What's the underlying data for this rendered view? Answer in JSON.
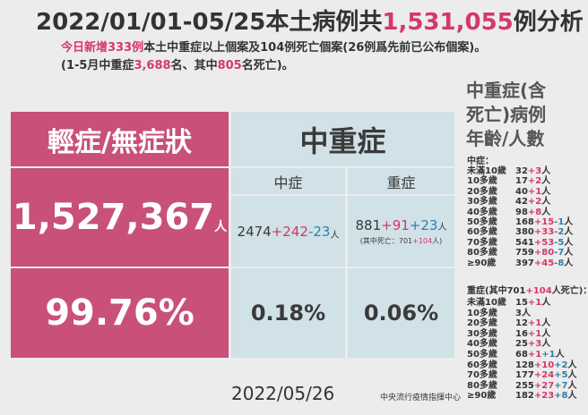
{
  "header": {
    "title": [
      "2022/01/01-05/25本土病例共",
      "1,531,055",
      "例分析"
    ],
    "line1": [
      "今日新增333例",
      "本土中重症以上個案及104例死亡個案(26例爲先前已公布個案)。"
    ],
    "line2": [
      "(1-5月中重症",
      "3,688",
      "名、其中",
      "805",
      "名死亡)。"
    ]
  },
  "table": {
    "mild": {
      "header": "輕症/無症狀",
      "count": "1,527,367",
      "unit": "人",
      "percent": "99.76%"
    },
    "severe_group": {
      "header": "中重症",
      "moderate": {
        "header": "中症",
        "count": "2474",
        "added": "+242",
        "change": "-23",
        "unit": "人",
        "percent": "0.18%"
      },
      "severe": {
        "header": "重症",
        "count": "881",
        "added": "+91",
        "change": "+23",
        "unit": "人",
        "note": [
          "(其中死亡：701",
          "+104",
          "人)"
        ],
        "percent": "0.06%"
      }
    }
  },
  "side": {
    "title": [
      "中重症(含",
      "死亡)病例",
      "年齡/人數"
    ],
    "moderate": {
      "label": "中症：",
      "rows": [
        {
          "age": "未滿10歲",
          "count": "32",
          "added": "+3",
          "unit": "人"
        },
        {
          "age": "10多歲",
          "count": "17",
          "added": "+2",
          "unit": "人"
        },
        {
          "age": "20多歲",
          "count": "40",
          "added": "+1",
          "unit": "人"
        },
        {
          "age": "30多歲",
          "count": "42",
          "added": "+2",
          "unit": "人"
        },
        {
          "age": "40多歲",
          "count": "98",
          "added": "+8",
          "unit": "人"
        },
        {
          "age": "50多歲",
          "count": "168",
          "added": "+15",
          "change": "-1",
          "unit": "人"
        },
        {
          "age": "60多歲",
          "count": "380",
          "added": "+33",
          "change": "-2",
          "unit": "人"
        },
        {
          "age": "70多歲",
          "count": "541",
          "added": "+53",
          "change": "-5",
          "unit": "人"
        },
        {
          "age": "80多歲",
          "count": "759",
          "added": "+80",
          "change": "-7",
          "unit": "人"
        },
        {
          "age": "≥90歲",
          "count": "397",
          "added": "+45",
          "change": "-8",
          "unit": "人"
        }
      ]
    },
    "severe": {
      "label": [
        "重症(其中701",
        "+104",
        "人死亡)："
      ],
      "rows": [
        {
          "age": "未滿10歲",
          "count": "15",
          "added": "+1",
          "unit": "人"
        },
        {
          "age": "10多歲",
          "count": "3",
          "unit": "人"
        },
        {
          "age": "20多歲",
          "count": "12",
          "added": "+1",
          "unit": "人"
        },
        {
          "age": "30多歲",
          "count": "16",
          "added": "+1",
          "unit": "人"
        },
        {
          "age": "40多歲",
          "count": "25",
          "added": "+3",
          "unit": "人"
        },
        {
          "age": "50多歲",
          "count": "68",
          "added": "+1",
          "change": "+1",
          "unit": "人"
        },
        {
          "age": "60多歲",
          "count": "128",
          "added": "+10",
          "change": "+2",
          "unit": "人"
        },
        {
          "age": "70多歲",
          "count": "177",
          "added": "+24",
          "change": "+5",
          "unit": "人"
        },
        {
          "age": "80多歲",
          "count": "255",
          "added": "+27",
          "change": "+7",
          "unit": "人"
        },
        {
          "age": "≥90歲",
          "count": "182",
          "added": "+23",
          "change": "+8",
          "unit": "人"
        }
      ]
    }
  },
  "footer": {
    "date": "2022/05/26",
    "org": "中央流行疫情指揮中心"
  }
}
